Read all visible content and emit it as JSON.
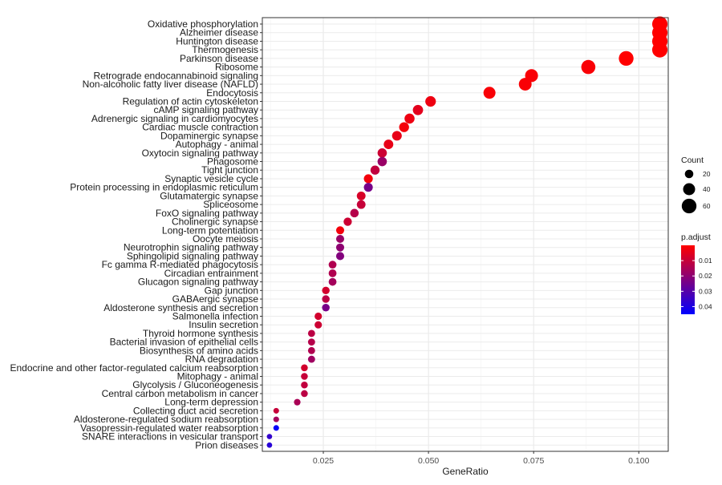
{
  "chart_data": {
    "type": "scatter",
    "title": "",
    "xlabel": "GeneRatio",
    "ylabel": "",
    "xlim": [
      0.0105,
      0.107
    ],
    "xticks": [
      0.025,
      0.05,
      0.075,
      0.1
    ],
    "xtick_labels": [
      "0.025",
      "0.050",
      "0.075",
      "0.100"
    ],
    "grid": true,
    "legend_position": "right",
    "size_legend": {
      "title": "Count",
      "breaks": [
        20,
        40,
        60
      ],
      "labels": [
        "20",
        "40",
        "60"
      ]
    },
    "color_legend": {
      "title": "p.adjust",
      "ticks": [
        0.01,
        0.02,
        0.03,
        0.04
      ],
      "tick_labels": [
        "0.01",
        "0.02",
        "0.03",
        "0.04"
      ],
      "range": [
        0.0,
        0.045
      ],
      "low_color": "#ff0000",
      "high_color": "#0000ff"
    },
    "points": [
      {
        "term": "Oxidative phosphorylation",
        "gene_ratio": 0.105,
        "count": 65,
        "p_adjust": 0.0
      },
      {
        "term": "Alzheimer disease",
        "gene_ratio": 0.105,
        "count": 65,
        "p_adjust": 0.0
      },
      {
        "term": "Huntington disease",
        "gene_ratio": 0.105,
        "count": 65,
        "p_adjust": 0.0
      },
      {
        "term": "Thermogenesis",
        "gene_ratio": 0.105,
        "count": 65,
        "p_adjust": 0.0
      },
      {
        "term": "Parkinson disease",
        "gene_ratio": 0.097,
        "count": 60,
        "p_adjust": 0.0
      },
      {
        "term": "Ribosome",
        "gene_ratio": 0.088,
        "count": 55,
        "p_adjust": 0.001
      },
      {
        "term": "Retrograde endocannabinoid signaling",
        "gene_ratio": 0.0745,
        "count": 46,
        "p_adjust": 0.001
      },
      {
        "term": "Non-alcoholic fatty liver disease (NAFLD)",
        "gene_ratio": 0.073,
        "count": 45,
        "p_adjust": 0.001
      },
      {
        "term": "Endocytosis",
        "gene_ratio": 0.0645,
        "count": 40,
        "p_adjust": 0.001
      },
      {
        "term": "Regulation of actin cytoskeleton",
        "gene_ratio": 0.0505,
        "count": 31,
        "p_adjust": 0.003
      },
      {
        "term": "cAMP signaling pathway",
        "gene_ratio": 0.0475,
        "count": 29,
        "p_adjust": 0.005
      },
      {
        "term": "Adrenergic signaling in cardiomyocytes",
        "gene_ratio": 0.0455,
        "count": 28,
        "p_adjust": 0.003
      },
      {
        "term": "Cardiac muscle contraction",
        "gene_ratio": 0.0442,
        "count": 27,
        "p_adjust": 0.002
      },
      {
        "term": "Dopaminergic synapse",
        "gene_ratio": 0.0425,
        "count": 26,
        "p_adjust": 0.004
      },
      {
        "term": "Autophagy - animal",
        "gene_ratio": 0.0405,
        "count": 25,
        "p_adjust": 0.004
      },
      {
        "term": "Oxytocin signaling pathway",
        "gene_ratio": 0.039,
        "count": 24,
        "p_adjust": 0.009
      },
      {
        "term": "Phagosome",
        "gene_ratio": 0.039,
        "count": 24,
        "p_adjust": 0.018
      },
      {
        "term": "Tight junction",
        "gene_ratio": 0.0373,
        "count": 23,
        "p_adjust": 0.011
      },
      {
        "term": "Synaptic vesicle cycle",
        "gene_ratio": 0.0357,
        "count": 22,
        "p_adjust": 0.002
      },
      {
        "term": "Protein processing in endoplasmic reticulum",
        "gene_ratio": 0.0357,
        "count": 22,
        "p_adjust": 0.024
      },
      {
        "term": "Glutamatergic synapse",
        "gene_ratio": 0.034,
        "count": 21,
        "p_adjust": 0.007
      },
      {
        "term": "Spliceosome",
        "gene_ratio": 0.034,
        "count": 21,
        "p_adjust": 0.01
      },
      {
        "term": "FoxO signaling pathway",
        "gene_ratio": 0.0324,
        "count": 20,
        "p_adjust": 0.013
      },
      {
        "term": "Cholinergic synapse",
        "gene_ratio": 0.0308,
        "count": 19,
        "p_adjust": 0.009
      },
      {
        "term": "Long-term potentiation",
        "gene_ratio": 0.029,
        "count": 18,
        "p_adjust": 0.002
      },
      {
        "term": "Oocyte meiosis",
        "gene_ratio": 0.029,
        "count": 18,
        "p_adjust": 0.018
      },
      {
        "term": "Neurotrophin signaling pathway",
        "gene_ratio": 0.029,
        "count": 18,
        "p_adjust": 0.02
      },
      {
        "term": "Sphingolipid signaling pathway",
        "gene_ratio": 0.029,
        "count": 18,
        "p_adjust": 0.022
      },
      {
        "term": "Fc gamma R-mediated phagocytosis",
        "gene_ratio": 0.0272,
        "count": 17,
        "p_adjust": 0.014
      },
      {
        "term": "Circadian entrainment",
        "gene_ratio": 0.0272,
        "count": 17,
        "p_adjust": 0.014
      },
      {
        "term": "Glucagon signaling pathway",
        "gene_ratio": 0.0272,
        "count": 17,
        "p_adjust": 0.016
      },
      {
        "term": "Gap junction",
        "gene_ratio": 0.0256,
        "count": 16,
        "p_adjust": 0.008
      },
      {
        "term": "GABAergic synapse",
        "gene_ratio": 0.0256,
        "count": 16,
        "p_adjust": 0.012
      },
      {
        "term": "Aldosterone synthesis and secretion",
        "gene_ratio": 0.0256,
        "count": 16,
        "p_adjust": 0.024
      },
      {
        "term": "Salmonella infection",
        "gene_ratio": 0.0238,
        "count": 15,
        "p_adjust": 0.008
      },
      {
        "term": "Insulin secretion",
        "gene_ratio": 0.0238,
        "count": 15,
        "p_adjust": 0.009
      },
      {
        "term": "Thyroid hormone synthesis",
        "gene_ratio": 0.0222,
        "count": 14,
        "p_adjust": 0.012
      },
      {
        "term": "Bacterial invasion of epithelial cells",
        "gene_ratio": 0.0222,
        "count": 14,
        "p_adjust": 0.013
      },
      {
        "term": "Biosynthesis of amino acids",
        "gene_ratio": 0.0222,
        "count": 14,
        "p_adjust": 0.014
      },
      {
        "term": "RNA degradation",
        "gene_ratio": 0.0222,
        "count": 14,
        "p_adjust": 0.017
      },
      {
        "term": "Endocrine and other factor-regulated calcium reabsorption",
        "gene_ratio": 0.0205,
        "count": 13,
        "p_adjust": 0.008
      },
      {
        "term": "Mitophagy - animal",
        "gene_ratio": 0.0205,
        "count": 13,
        "p_adjust": 0.01
      },
      {
        "term": "Glycolysis / Gluconeogenesis",
        "gene_ratio": 0.0205,
        "count": 13,
        "p_adjust": 0.011
      },
      {
        "term": "Central carbon metabolism in cancer",
        "gene_ratio": 0.0205,
        "count": 13,
        "p_adjust": 0.012
      },
      {
        "term": "Long-term depression",
        "gene_ratio": 0.0188,
        "count": 12,
        "p_adjust": 0.015
      },
      {
        "term": "Collecting duct acid secretion",
        "gene_ratio": 0.0138,
        "count": 9,
        "p_adjust": 0.01
      },
      {
        "term": "Aldosterone-regulated sodium reabsorption",
        "gene_ratio": 0.0138,
        "count": 9,
        "p_adjust": 0.016
      },
      {
        "term": "Vasopressin-regulated water reabsorption",
        "gene_ratio": 0.0138,
        "count": 9,
        "p_adjust": 0.044
      },
      {
        "term": "SNARE interactions in vesicular transport",
        "gene_ratio": 0.0122,
        "count": 8,
        "p_adjust": 0.036
      },
      {
        "term": "Prion diseases",
        "gene_ratio": 0.0122,
        "count": 8,
        "p_adjust": 0.038
      }
    ]
  }
}
